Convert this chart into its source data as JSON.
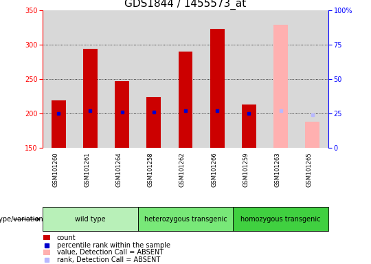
{
  "title": "GDS1844 / 1455573_at",
  "samples": [
    "GSM101260",
    "GSM101261",
    "GSM101264",
    "GSM101258",
    "GSM101262",
    "GSM101266",
    "GSM101259",
    "GSM101263",
    "GSM101265"
  ],
  "count_values": [
    219,
    294,
    247,
    224,
    290,
    323,
    213,
    null,
    null
  ],
  "count_absent_values": [
    null,
    null,
    null,
    null,
    null,
    null,
    null,
    329,
    188
  ],
  "percentile_values": [
    25,
    27,
    26,
    26,
    27,
    27,
    25,
    null,
    null
  ],
  "percentile_absent_values": [
    null,
    null,
    null,
    null,
    null,
    null,
    null,
    27,
    24
  ],
  "bar_base": 150,
  "ylim_left": [
    150,
    350
  ],
  "ylim_right": [
    0,
    100
  ],
  "yticks_left": [
    150,
    200,
    250,
    300,
    350
  ],
  "yticks_right": [
    0,
    25,
    50,
    75,
    100
  ],
  "yticklabels_right": [
    "0",
    "25",
    "50",
    "75",
    "100%"
  ],
  "groups": [
    {
      "label": "wild type",
      "start": 0,
      "end": 3,
      "color": "#b8f0b8"
    },
    {
      "label": "heterozygous transgenic",
      "start": 3,
      "end": 6,
      "color": "#78e878"
    },
    {
      "label": "homozygous transgenic",
      "start": 6,
      "end": 9,
      "color": "#40d040"
    }
  ],
  "bar_color_present": "#cc0000",
  "bar_color_absent": "#ffb0b0",
  "marker_color_present": "#0000cc",
  "marker_color_absent": "#b8b8ff",
  "bar_width": 0.45,
  "genotype_label": "genotype/variation",
  "bg_color": "#d8d8d8",
  "title_fontsize": 11,
  "tick_fontsize": 7,
  "legend_fontsize": 8
}
